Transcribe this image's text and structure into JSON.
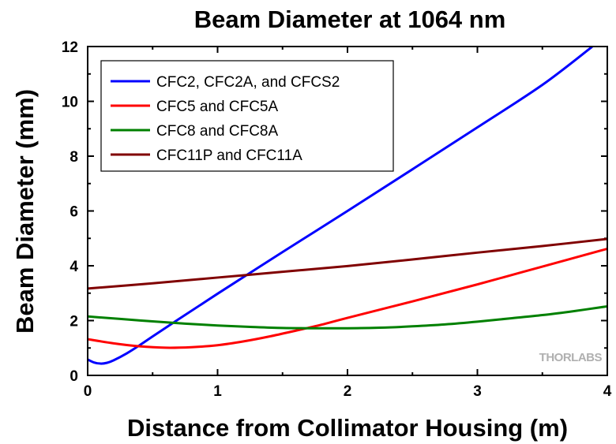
{
  "chart_data": {
    "type": "line",
    "title": "Beam Diameter at 1064 nm",
    "xlabel": "Distance from Collimator Housing (m)",
    "ylabel": "Beam Diameter (mm)",
    "xlim": [
      0,
      4
    ],
    "ylim": [
      0,
      12
    ],
    "xticks": [
      "0",
      "1",
      "2",
      "3",
      "4"
    ],
    "yticks": [
      "0",
      "2",
      "4",
      "6",
      "8",
      "10",
      "12"
    ],
    "grid": false,
    "legend_position": "top-left",
    "watermark": "THORLABS",
    "series": [
      {
        "name": "CFC2, CFC2A, and CFCS2",
        "color": "#0000ff",
        "x": [
          0,
          0.05,
          0.1,
          0.15,
          0.2,
          0.3,
          0.4,
          0.5,
          0.7,
          1.0,
          1.5,
          2.0,
          2.5,
          3.0,
          3.5,
          3.88
        ],
        "y": [
          0.58,
          0.47,
          0.43,
          0.46,
          0.55,
          0.8,
          1.1,
          1.42,
          2.05,
          2.98,
          4.5,
          6.0,
          7.52,
          9.05,
          10.6,
          11.98
        ]
      },
      {
        "name": "CFC5 and CFC5A",
        "color": "#ff0000",
        "x": [
          0,
          0.2,
          0.4,
          0.6,
          0.8,
          1.0,
          1.2,
          1.4,
          1.6,
          1.8,
          2.0,
          2.5,
          3.0,
          3.5,
          4.0
        ],
        "y": [
          1.32,
          1.17,
          1.06,
          1.01,
          1.03,
          1.1,
          1.24,
          1.42,
          1.63,
          1.85,
          2.1,
          2.7,
          3.32,
          3.97,
          4.62
        ]
      },
      {
        "name": "CFC8 and CFC8A",
        "color": "#008000",
        "x": [
          0,
          0.25,
          0.5,
          0.75,
          1.0,
          1.25,
          1.5,
          1.75,
          2.0,
          2.25,
          2.5,
          2.75,
          3.0,
          3.25,
          3.5,
          3.75,
          4.0
        ],
        "y": [
          2.15,
          2.06,
          1.97,
          1.89,
          1.82,
          1.77,
          1.73,
          1.72,
          1.72,
          1.74,
          1.79,
          1.86,
          1.96,
          2.08,
          2.2,
          2.35,
          2.52
        ]
      },
      {
        "name": "CFC11P and CFC11A",
        "color": "#800000",
        "x": [
          0,
          0.5,
          1.0,
          1.5,
          2.0,
          2.5,
          3.0,
          3.5,
          4.0
        ],
        "y": [
          3.17,
          3.36,
          3.57,
          3.78,
          3.99,
          4.23,
          4.48,
          4.72,
          4.98
        ]
      }
    ]
  }
}
